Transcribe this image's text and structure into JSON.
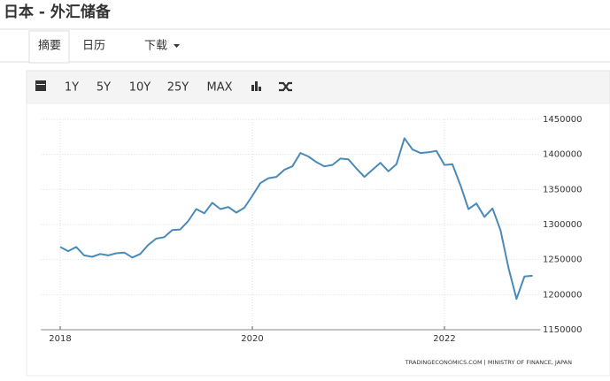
{
  "header": {
    "title": "日本 - 外汇储备"
  },
  "tabs": [
    "摘要",
    "日历",
    "下载"
  ],
  "toolbar": [
    "1Y",
    "5Y",
    "10Y",
    "25Y",
    "MAX"
  ],
  "chart_data": {
    "type": "line",
    "source": "TRADINGECONOMICS.COM | MINISTRY OF FINANCE, JAPAN",
    "x": [
      2018,
      2018.083,
      2018.167,
      2018.25,
      2018.333,
      2018.417,
      2018.5,
      2018.583,
      2018.667,
      2018.75,
      2018.833,
      2018.917,
      2019,
      2019.083,
      2019.167,
      2019.25,
      2019.333,
      2019.417,
      2019.5,
      2019.583,
      2019.667,
      2019.75,
      2019.833,
      2019.917,
      2020,
      2020.083,
      2020.167,
      2020.25,
      2020.333,
      2020.417,
      2020.5,
      2020.583,
      2020.667,
      2020.75,
      2020.833,
      2020.917,
      2021,
      2021.083,
      2021.167,
      2021.25,
      2021.333,
      2021.417,
      2021.5,
      2021.583,
      2021.667,
      2021.75,
      2021.833,
      2021.917,
      2022,
      2022.083,
      2022.167,
      2022.25,
      2022.333,
      2022.417,
      2022.5,
      2022.583,
      2022.667,
      2022.75,
      2022.833,
      2022.917
    ],
    "values": [
      1268000,
      1262000,
      1268000,
      1256000,
      1254000,
      1258000,
      1256000,
      1259000,
      1260000,
      1253000,
      1258000,
      1271000,
      1280000,
      1282000,
      1292000,
      1293000,
      1305000,
      1322000,
      1316000,
      1331000,
      1322000,
      1325000,
      1317000,
      1324000,
      1341000,
      1359000,
      1366000,
      1368000,
      1378000,
      1383000,
      1402000,
      1397000,
      1389000,
      1383000,
      1385000,
      1394000,
      1393000,
      1380000,
      1368000,
      1378000,
      1388000,
      1376000,
      1386000,
      1423000,
      1407000,
      1402000,
      1403000,
      1405000,
      1385000,
      1386000,
      1356000,
      1322000,
      1330000,
      1311000,
      1323000,
      1292000,
      1238000,
      1194000,
      1226000,
      1227000
    ],
    "color": "#4a8ab8",
    "xlim": [
      2017.8,
      2023
    ],
    "xticks": [
      2018,
      2020,
      2022
    ],
    "ylim": [
      1150000,
      1450000
    ],
    "yticks": [
      1150000,
      1200000,
      1250000,
      1300000,
      1350000,
      1400000,
      1450000
    ],
    "grid": true
  }
}
